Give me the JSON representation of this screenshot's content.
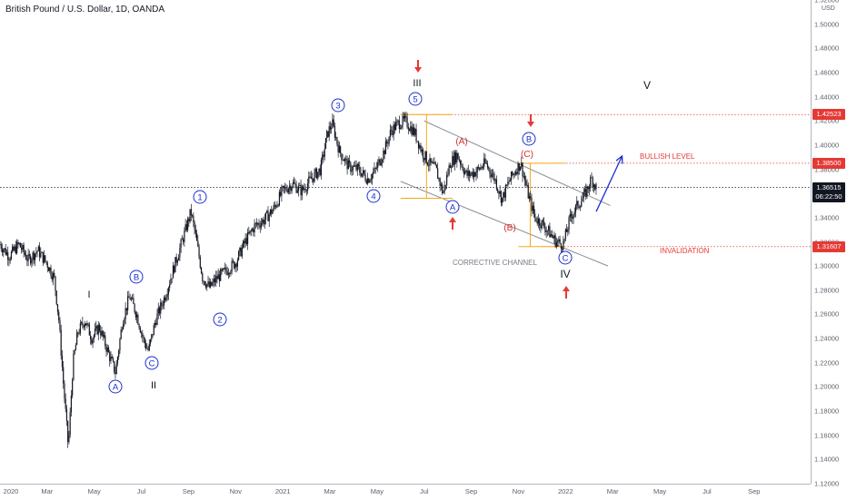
{
  "header": {
    "title": "British Pound / U.S. Dollar, 1D, OANDA",
    "currency": "USD"
  },
  "price_axis": {
    "ticks": [
      "1.52000",
      "1.50000",
      "1.48000",
      "1.46000",
      "1.44000",
      "1.42000",
      "1.40000",
      "1.38000",
      "1.36000",
      "1.34000",
      "1.32000",
      "1.30000",
      "1.28000",
      "1.26000",
      "1.24000",
      "1.22000",
      "1.20000",
      "1.18000",
      "1.16000",
      "1.14000",
      "1.12000"
    ],
    "tick_values": [
      1.52,
      1.5,
      1.48,
      1.46,
      1.44,
      1.42,
      1.4,
      1.38,
      1.36,
      1.34,
      1.32,
      1.3,
      1.28,
      1.26,
      1.24,
      1.22,
      1.2,
      1.18,
      1.16,
      1.14,
      1.12
    ]
  },
  "time_axis": {
    "ticks": [
      "2020",
      "Mar",
      "May",
      "Jul",
      "Sep",
      "Nov",
      "2021",
      "Mar",
      "May",
      "Jul",
      "Sep",
      "Nov",
      "2022",
      "Mar",
      "May",
      "Jul",
      "Sep"
    ],
    "tick_months": [
      0,
      2,
      4,
      6,
      8,
      10,
      12,
      14,
      16,
      18,
      20,
      22,
      24,
      26,
      28,
      30,
      32
    ]
  },
  "price_tags": {
    "high": {
      "label": "1.42523",
      "value": 1.42523,
      "color": "#e53935"
    },
    "bullish": {
      "label": "1.38500",
      "value": 1.385,
      "color": "#e53935"
    },
    "current": {
      "label": "1.36515",
      "countdown": "06:22:50",
      "value": 1.36515,
      "color": "#131722"
    },
    "invalidation": {
      "label": "1.31607",
      "value": 1.31607,
      "color": "#e53935"
    }
  },
  "annotations": {
    "bullish_level": "BULLISH LEVEL",
    "invalidation": "INVALIDATION",
    "corrective_channel": "CORRECTIVE CHANNEL",
    "roman": {
      "I": "I",
      "II": "II",
      "III": "III",
      "IV": "IV",
      "V": "V"
    },
    "circled": {
      "A1": "A",
      "B1": "B",
      "C1": "C",
      "w1": "1",
      "w2": "2",
      "w3": "3",
      "w4": "4",
      "w5": "5",
      "A2": "A",
      "B2": "B",
      "C2": "C"
    },
    "red_abc": {
      "A": "(A)",
      "B": "(B)",
      "C": "(C)"
    }
  },
  "chart_data": {
    "type": "candlestick",
    "symbol": "GBPUSD",
    "timeframe": "1D",
    "ylim": [
      1.12,
      1.52
    ],
    "xlim_months": [
      0,
      34.4
    ],
    "grid": false,
    "path": [
      {
        "m": 0.0,
        "p": 1.318
      },
      {
        "m": 0.4,
        "p": 1.308
      },
      {
        "m": 0.8,
        "p": 1.318
      },
      {
        "m": 1.2,
        "p": 1.305
      },
      {
        "m": 1.6,
        "p": 1.313
      },
      {
        "m": 2.0,
        "p": 1.302
      },
      {
        "m": 2.3,
        "p": 1.29
      },
      {
        "m": 2.5,
        "p": 1.255
      },
      {
        "m": 2.7,
        "p": 1.2
      },
      {
        "m": 2.9,
        "p": 1.15
      },
      {
        "m": 3.1,
        "p": 1.22
      },
      {
        "m": 3.3,
        "p": 1.245
      },
      {
        "m": 3.6,
        "p": 1.255
      },
      {
        "m": 3.9,
        "p": 1.24
      },
      {
        "m": 4.2,
        "p": 1.25
      },
      {
        "m": 4.6,
        "p": 1.228
      },
      {
        "m": 4.9,
        "p": 1.212
      },
      {
        "m": 5.2,
        "p": 1.255
      },
      {
        "m": 5.5,
        "p": 1.275
      },
      {
        "m": 5.8,
        "p": 1.26
      },
      {
        "m": 6.1,
        "p": 1.238
      },
      {
        "m": 6.3,
        "p": 1.23
      },
      {
        "m": 6.6,
        "p": 1.255
      },
      {
        "m": 7.0,
        "p": 1.275
      },
      {
        "m": 7.4,
        "p": 1.3
      },
      {
        "m": 7.8,
        "p": 1.325
      },
      {
        "m": 8.1,
        "p": 1.345
      },
      {
        "m": 8.3,
        "p": 1.325
      },
      {
        "m": 8.6,
        "p": 1.29
      },
      {
        "m": 8.9,
        "p": 1.282
      },
      {
        "m": 9.2,
        "p": 1.29
      },
      {
        "m": 9.6,
        "p": 1.296
      },
      {
        "m": 10.0,
        "p": 1.303
      },
      {
        "m": 10.4,
        "p": 1.32
      },
      {
        "m": 10.8,
        "p": 1.333
      },
      {
        "m": 11.2,
        "p": 1.338
      },
      {
        "m": 11.6,
        "p": 1.347
      },
      {
        "m": 12.0,
        "p": 1.362
      },
      {
        "m": 12.4,
        "p": 1.368
      },
      {
        "m": 12.8,
        "p": 1.362
      },
      {
        "m": 13.2,
        "p": 1.372
      },
      {
        "m": 13.6,
        "p": 1.38
      },
      {
        "m": 13.9,
        "p": 1.41
      },
      {
        "m": 14.1,
        "p": 1.418
      },
      {
        "m": 14.4,
        "p": 1.395
      },
      {
        "m": 14.8,
        "p": 1.382
      },
      {
        "m": 15.2,
        "p": 1.38
      },
      {
        "m": 15.6,
        "p": 1.372
      },
      {
        "m": 15.9,
        "p": 1.378
      },
      {
        "m": 16.3,
        "p": 1.395
      },
      {
        "m": 16.6,
        "p": 1.412
      },
      {
        "m": 16.9,
        "p": 1.418
      },
      {
        "m": 17.2,
        "p": 1.42
      },
      {
        "m": 17.6,
        "p": 1.41
      },
      {
        "m": 17.9,
        "p": 1.395
      },
      {
        "m": 18.2,
        "p": 1.385
      },
      {
        "m": 18.5,
        "p": 1.38
      },
      {
        "m": 18.8,
        "p": 1.36
      },
      {
        "m": 19.1,
        "p": 1.385
      },
      {
        "m": 19.4,
        "p": 1.392
      },
      {
        "m": 19.8,
        "p": 1.375
      },
      {
        "m": 20.2,
        "p": 1.378
      },
      {
        "m": 20.6,
        "p": 1.385
      },
      {
        "m": 21.0,
        "p": 1.372
      },
      {
        "m": 21.3,
        "p": 1.355
      },
      {
        "m": 21.6,
        "p": 1.37
      },
      {
        "m": 21.9,
        "p": 1.38
      },
      {
        "m": 22.1,
        "p": 1.385
      },
      {
        "m": 22.4,
        "p": 1.36
      },
      {
        "m": 22.7,
        "p": 1.34
      },
      {
        "m": 23.0,
        "p": 1.335
      },
      {
        "m": 23.3,
        "p": 1.328
      },
      {
        "m": 23.6,
        "p": 1.32
      },
      {
        "m": 23.9,
        "p": 1.318
      },
      {
        "m": 24.2,
        "p": 1.34
      },
      {
        "m": 24.5,
        "p": 1.35
      },
      {
        "m": 24.8,
        "p": 1.358
      },
      {
        "m": 25.1,
        "p": 1.372
      },
      {
        "m": 25.3,
        "p": 1.365
      }
    ],
    "price_lines": [
      {
        "value": 1.42523,
        "style": "dotted",
        "color": "#e53935",
        "from_month": 17.0
      },
      {
        "value": 1.385,
        "style": "dotted",
        "color": "#e53935",
        "from_month": 22.0
      },
      {
        "value": 1.36515,
        "style": "dotted",
        "color": "#131722",
        "from_month": 0.0
      },
      {
        "value": 1.31607,
        "style": "dotted",
        "color": "#e53935",
        "from_month": 23.0
      }
    ],
    "channel": {
      "upper": [
        {
          "m": 18.0,
          "p": 1.42
        },
        {
          "m": 25.9,
          "p": 1.35
        }
      ],
      "lower": [
        {
          "m": 17.0,
          "p": 1.37
        },
        {
          "m": 25.8,
          "p": 1.3
        }
      ]
    },
    "projection_arrow": [
      {
        "m": 25.3,
        "p": 1.345
      },
      {
        "m": 26.4,
        "p": 1.391
      }
    ]
  }
}
